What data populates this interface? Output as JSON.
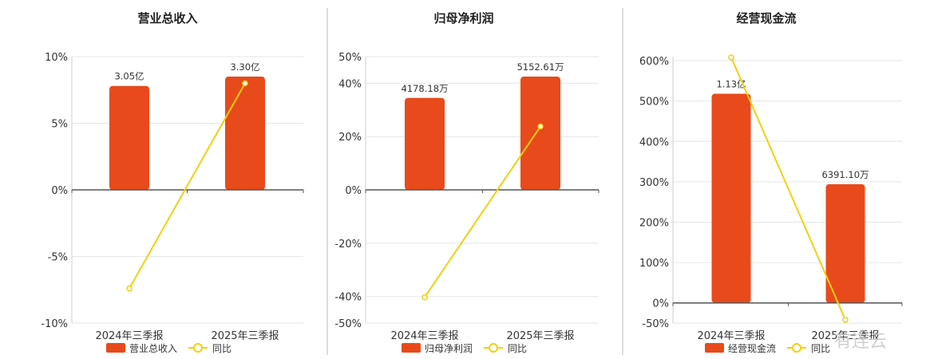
{
  "watermark": "有连云",
  "colors": {
    "bar": "#e84a1b",
    "line": "#f2d00f",
    "grid": "#e6e6e6",
    "axis": "#555555",
    "divider": "#bbbbbb"
  },
  "chart_data": [
    {
      "type": "bar",
      "title": "营业总收入",
      "categories": [
        "2024年三季报",
        "2025年三季报"
      ],
      "bar_labels": [
        "3.05亿",
        "3.30亿"
      ],
      "bar_values": [
        7.8,
        8.5
      ],
      "line_values": [
        -7.4,
        8.0
      ],
      "yticks": [
        "10%",
        "5%",
        "0%",
        "-5%",
        "-10%"
      ],
      "ylim": [
        -10,
        10
      ],
      "legend": [
        "营业总收入",
        "同比"
      ],
      "series": [
        {
          "name": "营业总收入",
          "type": "bar"
        },
        {
          "name": "同比",
          "type": "line"
        }
      ]
    },
    {
      "type": "bar",
      "title": "归母净利润",
      "categories": [
        "2024年三季报",
        "2025年三季报"
      ],
      "bar_labels": [
        "4178.18万",
        "5152.61万"
      ],
      "bar_values": [
        34.5,
        42.5
      ],
      "line_values": [
        -40.3,
        23.8
      ],
      "yticks": [
        "50%",
        "40%",
        "20%",
        "0%",
        "-20%",
        "-40%",
        "-50%"
      ],
      "ylim": [
        -50,
        50
      ],
      "legend": [
        "归母净利润",
        "同比"
      ],
      "series": [
        {
          "name": "归母净利润",
          "type": "bar"
        },
        {
          "name": "同比",
          "type": "line"
        }
      ]
    },
    {
      "type": "bar",
      "title": "经营现金流",
      "categories": [
        "2024年三季报",
        "2025年三季报"
      ],
      "bar_labels": [
        "1.13亿",
        "6391.10万"
      ],
      "bar_values": [
        518,
        294
      ],
      "line_values": [
        608,
        -42
      ],
      "yticks": [
        "600%",
        "500%",
        "400%",
        "300%",
        "200%",
        "100%",
        "0%",
        "-50%"
      ],
      "ylim": [
        -50,
        610
      ],
      "legend": [
        "经营现金流",
        "同比"
      ],
      "series": [
        {
          "name": "经营现金流",
          "type": "bar"
        },
        {
          "name": "同比",
          "type": "line"
        }
      ]
    }
  ]
}
